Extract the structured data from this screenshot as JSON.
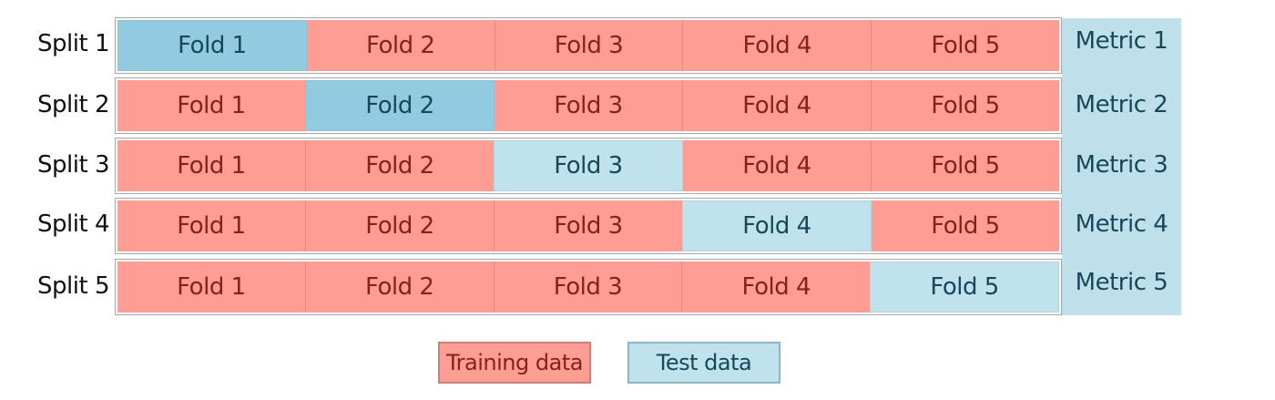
{
  "splits": [
    {
      "label": "Split 1",
      "metric": "Metric 1",
      "test_index": 0,
      "test_style": "dark",
      "folds": [
        "Fold 1",
        "Fold 2",
        "Fold 3",
        "Fold 4",
        "Fold 5"
      ]
    },
    {
      "label": "Split 2",
      "metric": "Metric 2",
      "test_index": 1,
      "test_style": "dark",
      "folds": [
        "Fold 1",
        "Fold 2",
        "Fold 3",
        "Fold 4",
        "Fold 5"
      ]
    },
    {
      "label": "Split 3",
      "metric": "Metric 3",
      "test_index": 2,
      "test_style": "light",
      "folds": [
        "Fold 1",
        "Fold 2",
        "Fold 3",
        "Fold 4",
        "Fold 5"
      ]
    },
    {
      "label": "Split 4",
      "metric": "Metric 4",
      "test_index": 3,
      "test_style": "light",
      "folds": [
        "Fold 1",
        "Fold 2",
        "Fold 3",
        "Fold 4",
        "Fold 5"
      ]
    },
    {
      "label": "Split 5",
      "metric": "Metric 5",
      "test_index": 4,
      "test_style": "light",
      "folds": [
        "Fold 1",
        "Fold 2",
        "Fold 3",
        "Fold 4",
        "Fold 5"
      ]
    }
  ],
  "legend": {
    "training_label": "Training data",
    "test_label": "Test data"
  },
  "colors": {
    "training": "#fe9d94",
    "training_text": "#8a1e1a",
    "test_dark": "#92cbdf",
    "test_light": "#bfe2ec",
    "test_text": "#17485a",
    "metric_column": "#bfe0ea"
  }
}
